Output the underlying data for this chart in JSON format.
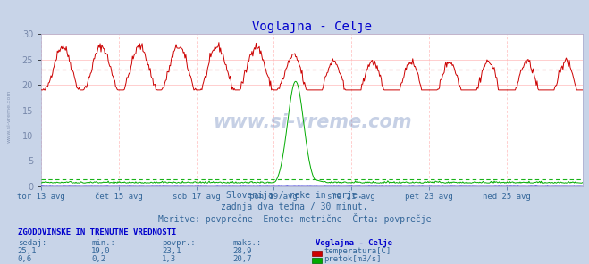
{
  "title": "Voglajna - Celje",
  "title_color": "#0000cc",
  "fig_bg_color": "#c8d4e8",
  "plot_bg_color": "#ffffff",
  "x_labels": [
    "tor 13 avg",
    "čet 15 avg",
    "sob 17 avg",
    "pon 19 avg",
    "sre 21 avg",
    "pet 23 avg",
    "ned 25 avg"
  ],
  "x_tick_positions": [
    0,
    96,
    192,
    288,
    384,
    480,
    576
  ],
  "total_points": 672,
  "temp_color": "#cc0000",
  "flow_color": "#00aa00",
  "height_color": "#0000cc",
  "ylim": [
    0,
    30
  ],
  "temp_avg": 23.1,
  "flow_avg": 1.3,
  "flow_max": 20.7,
  "temp_min": 19.0,
  "temp_max": 28.9,
  "watermark": "www.si-vreme.com",
  "subtitle1": "Slovenija / reke in morje.",
  "subtitle2": "zadnja dva tedna / 30 minut.",
  "subtitle3": "Meritve: povprečne  Enote: metrične  Črta: povprečje",
  "table_title": "ZGODOVINSKE IN TRENUTNE VREDNOSTI",
  "col_headers": [
    "sedaj:",
    "min.:",
    "povpr.:",
    "maks.:"
  ],
  "row1": [
    "25,1",
    "19,0",
    "23,1",
    "28,9"
  ],
  "row2": [
    "0,6",
    "0,2",
    "1,3",
    "20,7"
  ],
  "legend1": "temperatura[C]",
  "legend2": "pretok[m3/s]",
  "station": "Voglajna - Celje",
  "grid_color": "#ffbbbb",
  "subtitle_color": "#336699",
  "table_header_color": "#0000cc",
  "left_label_color": "#7788aa",
  "tick_label_color": "#336699"
}
